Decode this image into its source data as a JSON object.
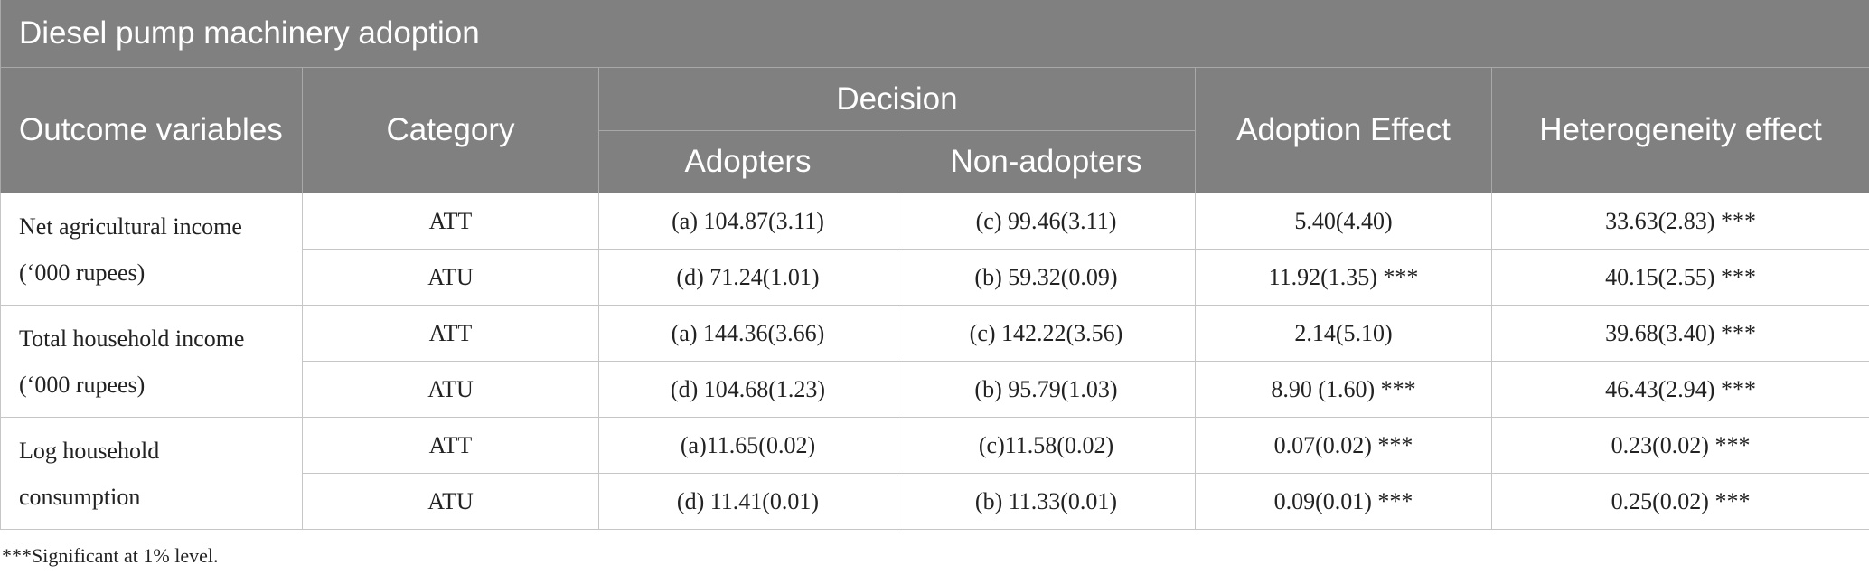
{
  "title": "Diesel pump machinery adoption",
  "header": {
    "outcome": "Outcome variables",
    "category": "Category",
    "decision": "Decision",
    "adopters": "Adopters",
    "non_adopters": "Non-adopters",
    "adoption_effect": "Adoption Effect",
    "heterogeneity_effect": "Heterogeneity effect"
  },
  "groups": [
    {
      "outcome": "Net agricultural income (‘000 rupees)",
      "rows": [
        [
          "ATT",
          "(a) 104.87(3.11)",
          "(c) 99.46(3.11)",
          "5.40(4.40)",
          "33.63(2.83) ***"
        ],
        [
          "ATU",
          "(d) 71.24(1.01)",
          "(b) 59.32(0.09)",
          "11.92(1.35) ***",
          "40.15(2.55) ***"
        ]
      ]
    },
    {
      "outcome": "Total household income (‘000 rupees)",
      "rows": [
        [
          "ATT",
          "(a) 144.36(3.66)",
          "(c) 142.22(3.56)",
          "2.14(5.10)",
          "39.68(3.40) ***"
        ],
        [
          "ATU",
          "(d) 104.68(1.23)",
          "(b) 95.79(1.03)",
          "8.90 (1.60) ***",
          "46.43(2.94) ***"
        ]
      ]
    },
    {
      "outcome": "Log household consumption",
      "rows": [
        [
          "ATT",
          "(a)11.65(0.02)",
          "(c)11.58(0.02)",
          "0.07(0.02) ***",
          "0.23(0.02) ***"
        ],
        [
          "ATU",
          "(d) 11.41(0.01)",
          "(b) 11.33(0.01)",
          "0.09(0.01) ***",
          "0.25(0.02) ***"
        ]
      ]
    }
  ],
  "footnote": "***Significant at 1% level."
}
